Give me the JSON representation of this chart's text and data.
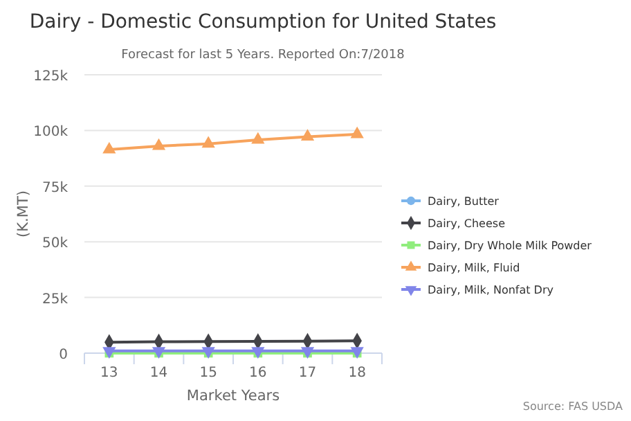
{
  "chart_data": {
    "type": "line",
    "title": "Dairy - Domestic Consumption for United States",
    "subtitle": "Forecast for last 5 Years. Reported On:7/2018",
    "xlabel": "Market Years",
    "ylabel": "(K.MT)",
    "categories": [
      "13",
      "14",
      "15",
      "16",
      "17",
      "18"
    ],
    "series": [
      {
        "name": "Dairy, Butter",
        "color": "#7cb5ec",
        "marker": "circle",
        "values": [
          null,
          null,
          null,
          null,
          null,
          null
        ]
      },
      {
        "name": "Dairy, Cheese",
        "color": "#434348",
        "marker": "diamond",
        "values": [
          4900,
          5100,
          5200,
          5300,
          5400,
          5500
        ]
      },
      {
        "name": "Dairy, Dry Whole Milk Powder",
        "color": "#90ed7d",
        "marker": "square",
        "values": [
          0,
          0,
          0,
          0,
          0,
          0
        ]
      },
      {
        "name": "Dairy, Milk, Fluid",
        "color": "#f7a35c",
        "marker": "triangle",
        "values": [
          91400,
          93000,
          94000,
          95800,
          97200,
          98300
        ]
      },
      {
        "name": "Dairy, Milk, Nonfat Dry",
        "color": "#8085e9",
        "marker": "triangle-down",
        "values": [
          1000,
          1000,
          1000,
          1000,
          1000,
          1000
        ]
      }
    ],
    "ylim": [
      0,
      125000
    ],
    "yticks": [
      {
        "value": 0,
        "label": "0"
      },
      {
        "value": 25000,
        "label": "25k"
      },
      {
        "value": 50000,
        "label": "50k"
      },
      {
        "value": 75000,
        "label": "75k"
      },
      {
        "value": 100000,
        "label": "100k"
      },
      {
        "value": 125000,
        "label": "125k"
      }
    ],
    "grid": "y",
    "legend": "right",
    "annotations": [
      "Source: FAS USDA"
    ]
  }
}
